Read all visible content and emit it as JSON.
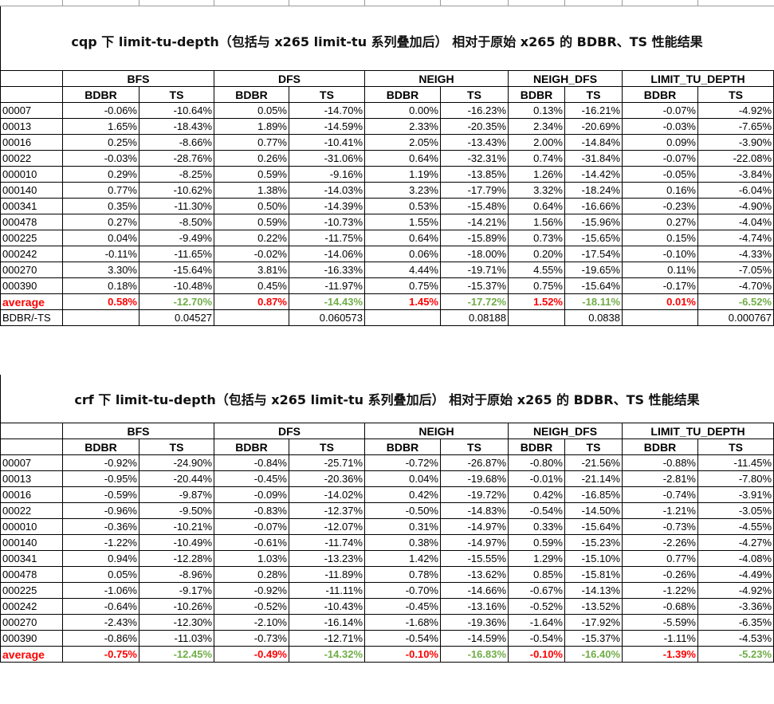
{
  "section1": {
    "title": "cqp 下 limit-tu-depth（包括与 x265 limit-tu 系列叠加后） 相对于原始 x265 的 BDBR、TS 性能结果",
    "groups": [
      "BFS",
      "DFS",
      "NEIGH",
      "NEIGH_DFS",
      "LIMIT_TU_DEPTH"
    ],
    "metric_labels": [
      "BDBR",
      "TS"
    ],
    "rows": [
      {
        "id": "00007",
        "values": [
          "-0.06%",
          "-10.64%",
          "0.05%",
          "-14.70%",
          "0.00%",
          "-16.23%",
          "0.13%",
          "-16.21%",
          "-0.07%",
          "-4.92%"
        ]
      },
      {
        "id": "00013",
        "values": [
          "1.65%",
          "-18.43%",
          "1.89%",
          "-14.59%",
          "2.33%",
          "-20.35%",
          "2.34%",
          "-20.69%",
          "-0.03%",
          "-7.65%"
        ]
      },
      {
        "id": "00016",
        "values": [
          "0.25%",
          "-8.66%",
          "0.77%",
          "-10.41%",
          "2.05%",
          "-13.43%",
          "2.00%",
          "-14.84%",
          "0.09%",
          "-3.90%"
        ]
      },
      {
        "id": "00022",
        "values": [
          "-0.03%",
          "-28.76%",
          "0.26%",
          "-31.06%",
          "0.64%",
          "-32.31%",
          "0.74%",
          "-31.84%",
          "-0.07%",
          "-22.08%"
        ]
      },
      {
        "id": "000010",
        "values": [
          "0.29%",
          "-8.25%",
          "0.59%",
          "-9.16%",
          "1.19%",
          "-13.85%",
          "1.26%",
          "-14.42%",
          "-0.05%",
          "-3.84%"
        ]
      },
      {
        "id": "000140",
        "values": [
          "0.77%",
          "-10.62%",
          "1.38%",
          "-14.03%",
          "3.23%",
          "-17.79%",
          "3.32%",
          "-18.24%",
          "0.16%",
          "-6.04%"
        ]
      },
      {
        "id": "000341",
        "values": [
          "0.35%",
          "-11.30%",
          "0.50%",
          "-14.39%",
          "0.53%",
          "-15.48%",
          "0.64%",
          "-16.66%",
          "-0.23%",
          "-4.90%"
        ]
      },
      {
        "id": "000478",
        "values": [
          "0.27%",
          "-8.50%",
          "0.59%",
          "-10.73%",
          "1.55%",
          "-14.21%",
          "1.56%",
          "-15.96%",
          "0.27%",
          "-4.04%"
        ]
      },
      {
        "id": "000225",
        "values": [
          "0.04%",
          "-9.49%",
          "0.22%",
          "-11.75%",
          "0.64%",
          "-15.89%",
          "0.73%",
          "-15.65%",
          "0.15%",
          "-4.74%"
        ]
      },
      {
        "id": "000242",
        "values": [
          "-0.11%",
          "-11.65%",
          "-0.02%",
          "-14.06%",
          "0.06%",
          "-18.00%",
          "0.20%",
          "-17.54%",
          "-0.10%",
          "-4.33%"
        ]
      },
      {
        "id": "000270",
        "values": [
          "3.30%",
          "-15.64%",
          "3.81%",
          "-16.33%",
          "4.44%",
          "-19.71%",
          "4.55%",
          "-19.65%",
          "0.11%",
          "-7.05%"
        ]
      },
      {
        "id": "000390",
        "values": [
          "0.18%",
          "-10.48%",
          "0.45%",
          "-11.97%",
          "0.75%",
          "-15.37%",
          "0.75%",
          "-15.64%",
          "-0.17%",
          "-4.70%"
        ]
      }
    ],
    "average": {
      "label": "average",
      "values": [
        "0.58%",
        "-12.70%",
        "0.87%",
        "-14.43%",
        "1.45%",
        "-17.72%",
        "1.52%",
        "-18.11%",
        "0.01%",
        "-6.52%"
      ]
    },
    "ratio": {
      "label": "BDBR/-TS",
      "values": [
        "0.04527",
        "0.060573",
        "0.08188",
        "0.0838",
        "0.000767"
      ]
    }
  },
  "section2": {
    "title": "crf 下 limit-tu-depth（包括与 x265 limit-tu 系列叠加后） 相对于原始 x265 的 BDBR、TS 性能结果",
    "groups": [
      "BFS",
      "DFS",
      "NEIGH",
      "NEIGH_DFS",
      "LIMIT_TU_DEPTH"
    ],
    "metric_labels": [
      "BDBR",
      "TS"
    ],
    "rows": [
      {
        "id": "00007",
        "values": [
          "-0.92%",
          "-24.90%",
          "-0.84%",
          "-25.71%",
          "-0.72%",
          "-26.87%",
          "-0.80%",
          "-21.56%",
          "-0.88%",
          "-11.45%"
        ]
      },
      {
        "id": "00013",
        "values": [
          "-0.95%",
          "-20.44%",
          "-0.45%",
          "-20.36%",
          "0.04%",
          "-19.68%",
          "-0.01%",
          "-21.14%",
          "-2.81%",
          "-7.80%"
        ]
      },
      {
        "id": "00016",
        "values": [
          "-0.59%",
          "-9.87%",
          "-0.09%",
          "-14.02%",
          "0.42%",
          "-19.72%",
          "0.42%",
          "-16.85%",
          "-0.74%",
          "-3.91%"
        ]
      },
      {
        "id": "00022",
        "values": [
          "-0.96%",
          "-9.50%",
          "-0.83%",
          "-12.37%",
          "-0.50%",
          "-14.83%",
          "-0.54%",
          "-14.50%",
          "-1.21%",
          "-3.05%"
        ]
      },
      {
        "id": "000010",
        "values": [
          "-0.36%",
          "-10.21%",
          "-0.07%",
          "-12.07%",
          "0.31%",
          "-14.97%",
          "0.33%",
          "-15.64%",
          "-0.73%",
          "-4.55%"
        ]
      },
      {
        "id": "000140",
        "values": [
          "-1.22%",
          "-10.49%",
          "-0.61%",
          "-11.74%",
          "0.38%",
          "-14.97%",
          "0.59%",
          "-15.23%",
          "-2.26%",
          "-4.27%"
        ]
      },
      {
        "id": "000341",
        "values": [
          "0.94%",
          "-12.28%",
          "1.03%",
          "-13.23%",
          "1.42%",
          "-15.55%",
          "1.29%",
          "-15.10%",
          "0.77%",
          "-4.08%"
        ]
      },
      {
        "id": "000478",
        "values": [
          "0.05%",
          "-8.96%",
          "0.28%",
          "-11.89%",
          "0.78%",
          "-13.62%",
          "0.85%",
          "-15.81%",
          "-0.26%",
          "-4.49%"
        ]
      },
      {
        "id": "000225",
        "values": [
          "-1.06%",
          "-9.17%",
          "-0.92%",
          "-11.11%",
          "-0.70%",
          "-14.66%",
          "-0.67%",
          "-14.13%",
          "-1.22%",
          "-4.92%"
        ]
      },
      {
        "id": "000242",
        "values": [
          "-0.64%",
          "-10.26%",
          "-0.52%",
          "-10.43%",
          "-0.45%",
          "-13.16%",
          "-0.52%",
          "-13.52%",
          "-0.68%",
          "-3.36%"
        ]
      },
      {
        "id": "000270",
        "values": [
          "-2.43%",
          "-12.30%",
          "-2.10%",
          "-16.14%",
          "-1.68%",
          "-19.36%",
          "-1.64%",
          "-17.92%",
          "-5.59%",
          "-6.35%"
        ]
      },
      {
        "id": "000390",
        "values": [
          "-0.86%",
          "-11.03%",
          "-0.73%",
          "-12.71%",
          "-0.54%",
          "-14.59%",
          "-0.54%",
          "-15.37%",
          "-1.11%",
          "-4.53%"
        ]
      }
    ],
    "average": {
      "label": "average",
      "values": [
        "-0.75%",
        "-12.45%",
        "-0.49%",
        "-14.32%",
        "-0.10%",
        "-16.83%",
        "-0.10%",
        "-16.40%",
        "-1.39%",
        "-5.23%"
      ]
    }
  }
}
